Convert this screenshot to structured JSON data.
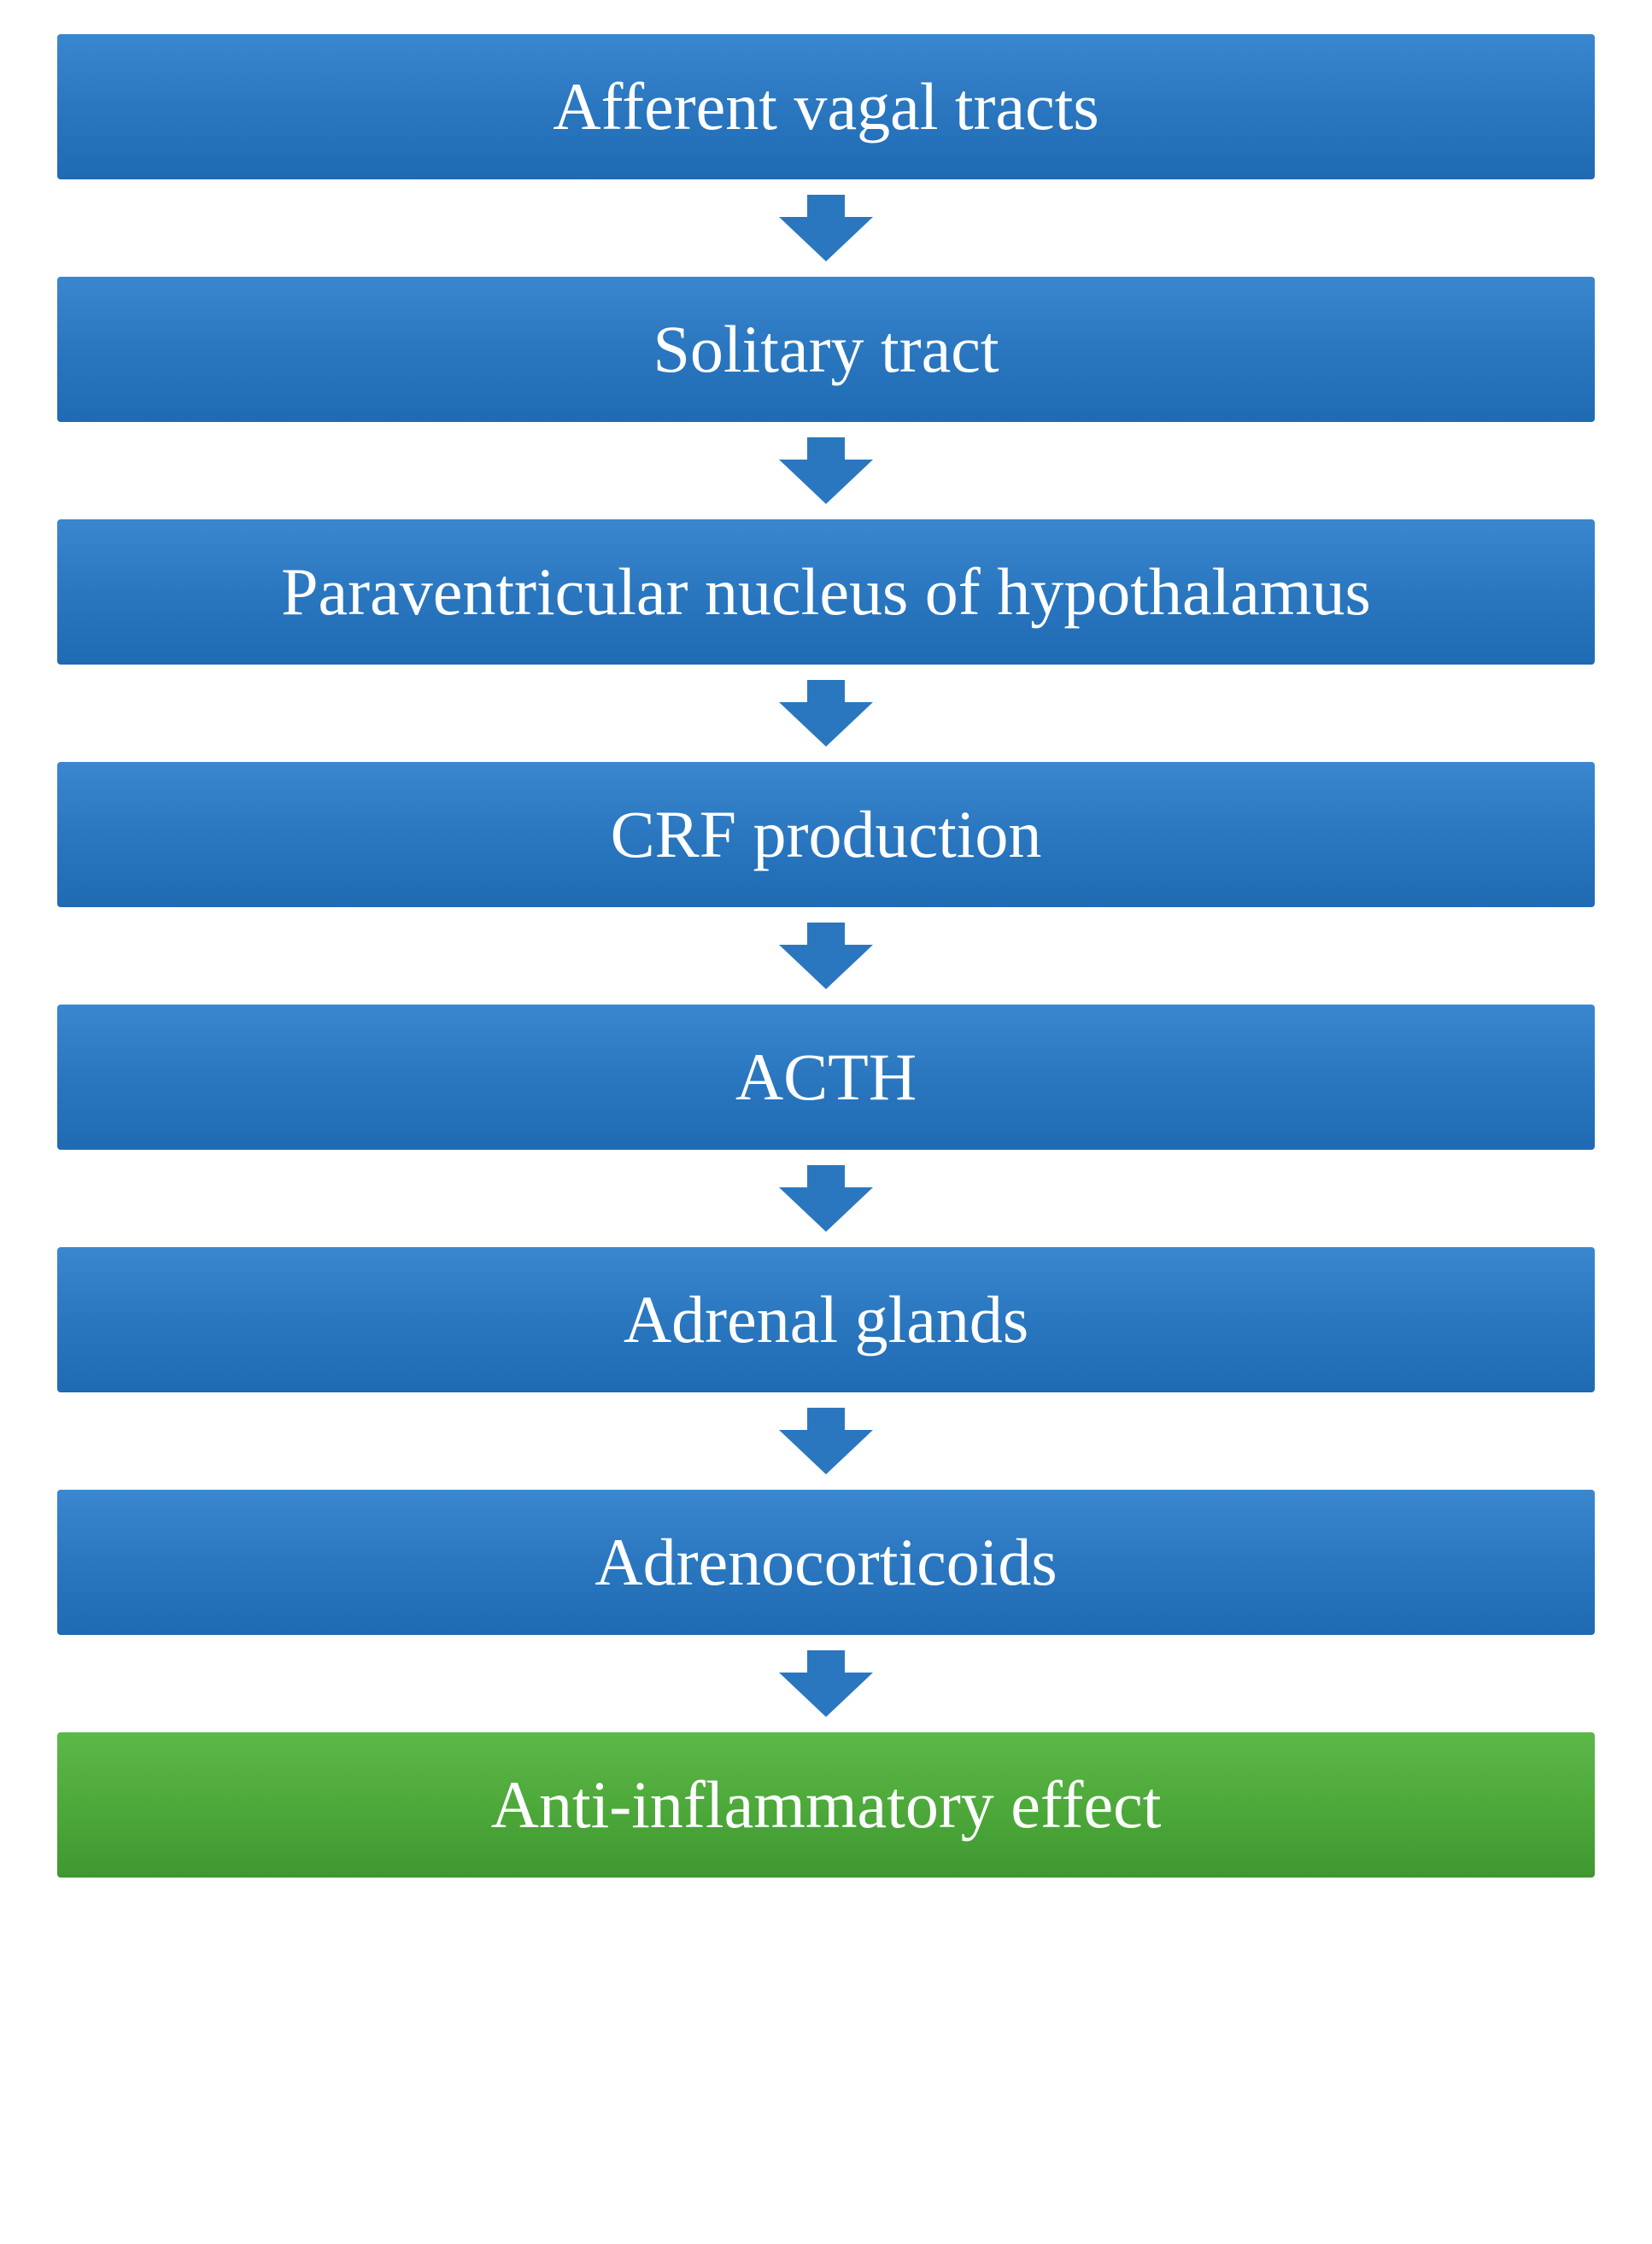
{
  "flowchart": {
    "type": "flowchart",
    "direction": "vertical",
    "background_color": "#ffffff",
    "node_font_family": "Georgia, serif",
    "node_font_size": 78,
    "node_font_weight": 400,
    "node_text_color": "#ffffff",
    "node_border_radius": 4,
    "node_padding_vertical": 40,
    "arrow_width": 110,
    "arrow_height": 78,
    "arrow_stem_width": 44,
    "arrow_stem_height": 26,
    "nodes": [
      {
        "id": "n1",
        "label": "Afferent vagal tracts",
        "fill": "#2a77c0",
        "fill_gradient_top": "#3a87d0",
        "fill_gradient_bottom": "#1f6ab3"
      },
      {
        "id": "n2",
        "label": "Solitary tract",
        "fill": "#2a77c0",
        "fill_gradient_top": "#3a87d0",
        "fill_gradient_bottom": "#1f6ab3"
      },
      {
        "id": "n3",
        "label": "Paraventricular nucleus of hypothalamus",
        "fill": "#2a77c0",
        "fill_gradient_top": "#3a87d0",
        "fill_gradient_bottom": "#1f6ab3"
      },
      {
        "id": "n4",
        "label": "CRF production",
        "fill": "#2a77c0",
        "fill_gradient_top": "#3a87d0",
        "fill_gradient_bottom": "#1f6ab3"
      },
      {
        "id": "n5",
        "label": "ACTH",
        "fill": "#2a77c0",
        "fill_gradient_top": "#3a87d0",
        "fill_gradient_bottom": "#1f6ab3"
      },
      {
        "id": "n6",
        "label": "Adrenal glands",
        "fill": "#2a77c0",
        "fill_gradient_top": "#3a87d0",
        "fill_gradient_bottom": "#1f6ab3"
      },
      {
        "id": "n7",
        "label": "Adrenocorticoids",
        "fill": "#2a77c0",
        "fill_gradient_top": "#3a87d0",
        "fill_gradient_bottom": "#1f6ab3"
      },
      {
        "id": "n8",
        "label": "Anti-inflammatory effect",
        "fill": "#4ea93b",
        "fill_gradient_top": "#5cb848",
        "fill_gradient_bottom": "#3e9830"
      }
    ],
    "arrows": [
      {
        "from": "n1",
        "to": "n2",
        "color": "#2a77c0"
      },
      {
        "from": "n2",
        "to": "n3",
        "color": "#2a77c0"
      },
      {
        "from": "n3",
        "to": "n4",
        "color": "#2a77c0"
      },
      {
        "from": "n4",
        "to": "n5",
        "color": "#2a77c0"
      },
      {
        "from": "n5",
        "to": "n6",
        "color": "#2a77c0"
      },
      {
        "from": "n6",
        "to": "n7",
        "color": "#2a77c0"
      },
      {
        "from": "n7",
        "to": "n8",
        "color": "#2a77c0"
      }
    ]
  }
}
